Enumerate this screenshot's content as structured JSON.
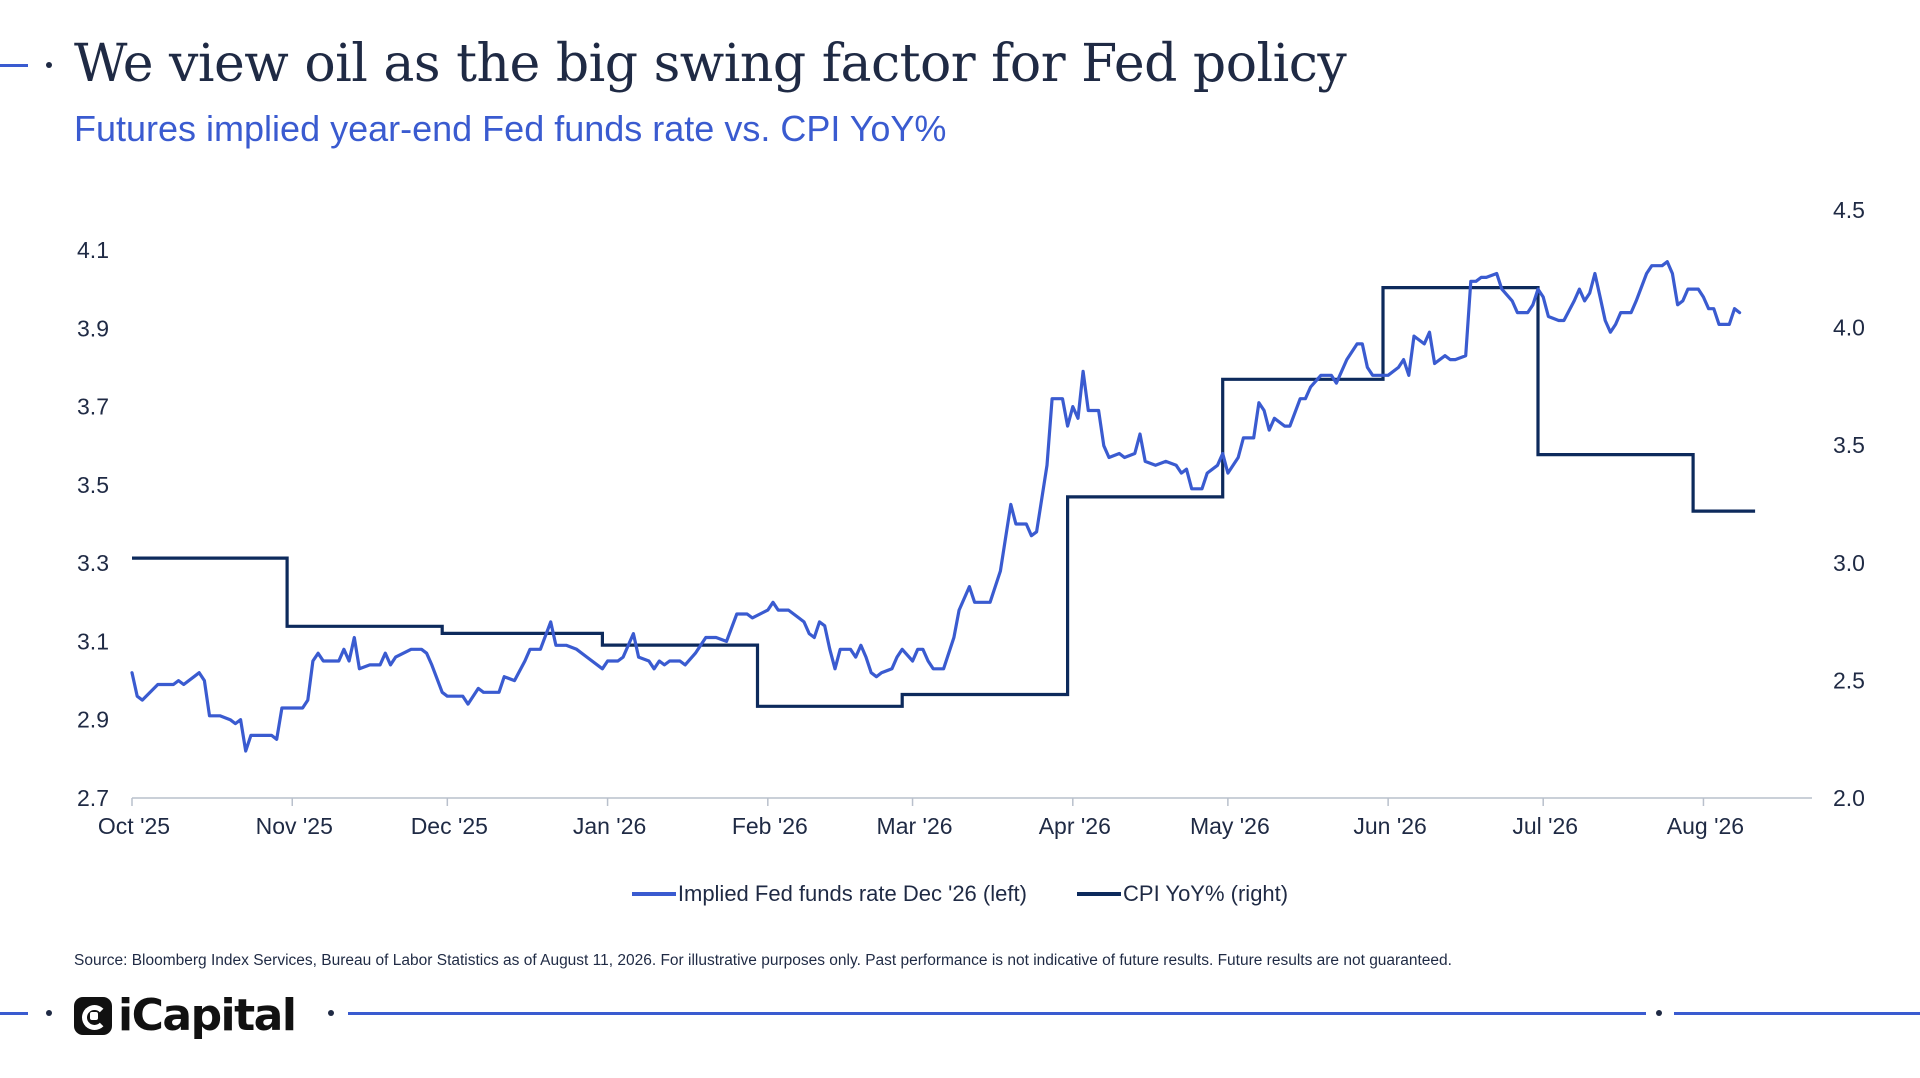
{
  "header": {
    "title": "We view oil as the big swing factor for Fed policy",
    "subtitle": "Futures implied year-end Fed funds rate vs. CPI YoY%"
  },
  "footer": {
    "source": "Source: Bloomberg Index Services, Bureau of Labor Statistics as of August 11, 2026. For illustrative purposes only. Past performance is not indicative of future results. Future results are not guaranteed.",
    "logo_text": "iCapital"
  },
  "colors": {
    "fed": "#3a5bd0",
    "cpi": "#0d2a5c",
    "accent": "#3a5bd0",
    "text": "#1f2a44"
  },
  "chart_data": {
    "type": "line",
    "x_axis": {
      "min": "2025-10-01",
      "max": "2026-08-11",
      "ticks": [
        {
          "date": "2025-10-01",
          "label": "Oct '25"
        },
        {
          "date": "2025-11-01",
          "label": "Nov '25"
        },
        {
          "date": "2025-12-01",
          "label": "Dec '25"
        },
        {
          "date": "2026-01-01",
          "label": "Jan '26"
        },
        {
          "date": "2026-02-01",
          "label": "Feb '26"
        },
        {
          "date": "2026-03-01",
          "label": "Mar '26"
        },
        {
          "date": "2026-04-01",
          "label": "Apr '26"
        },
        {
          "date": "2026-05-01",
          "label": "May '26"
        },
        {
          "date": "2026-06-01",
          "label": "Jun '26"
        },
        {
          "date": "2026-07-01",
          "label": "Jul '26"
        },
        {
          "date": "2026-08-01",
          "label": "Aug '26"
        }
      ]
    },
    "y_left": {
      "min": 2.7,
      "max": 4.1,
      "ticks": [
        "2.7",
        "2.9",
        "3.1",
        "3.3",
        "3.5",
        "3.7",
        "3.9",
        "4.1"
      ]
    },
    "y_right": {
      "min": 2.0,
      "max": 4.5,
      "ticks": [
        "2.0",
        "2.5",
        "3.0",
        "3.5",
        "4.0",
        "4.5"
      ]
    },
    "legend": {
      "position": "bottom"
    },
    "grid": false,
    "series": [
      {
        "name": "Implied Fed funds rate Dec '26 (left)",
        "axis": "left",
        "points": [
          [
            "2025-10-01",
            3.02
          ],
          [
            "2025-10-02",
            2.96
          ],
          [
            "2025-10-03",
            2.95
          ],
          [
            "2025-10-06",
            2.99
          ],
          [
            "2025-10-08",
            2.99
          ],
          [
            "2025-10-09",
            2.99
          ],
          [
            "2025-10-10",
            3.0
          ],
          [
            "2025-10-11",
            2.99
          ],
          [
            "2025-10-13",
            3.01
          ],
          [
            "2025-10-14",
            3.02
          ],
          [
            "2025-10-15",
            3.0
          ],
          [
            "2025-10-16",
            2.91
          ],
          [
            "2025-10-18",
            2.91
          ],
          [
            "2025-10-20",
            2.9
          ],
          [
            "2025-10-21",
            2.89
          ],
          [
            "2025-10-22",
            2.9
          ],
          [
            "2025-10-23",
            2.82
          ],
          [
            "2025-10-24",
            2.86
          ],
          [
            "2025-10-27",
            2.86
          ],
          [
            "2025-10-28",
            2.86
          ],
          [
            "2025-10-29",
            2.85
          ],
          [
            "2025-10-30",
            2.93
          ],
          [
            "2025-11-01",
            2.93
          ],
          [
            "2025-11-03",
            2.93
          ],
          [
            "2025-11-04",
            2.95
          ],
          [
            "2025-11-05",
            3.05
          ],
          [
            "2025-11-06",
            3.07
          ],
          [
            "2025-11-07",
            3.05
          ],
          [
            "2025-11-10",
            3.05
          ],
          [
            "2025-11-11",
            3.08
          ],
          [
            "2025-11-12",
            3.05
          ],
          [
            "2025-11-13",
            3.11
          ],
          [
            "2025-11-14",
            3.03
          ],
          [
            "2025-11-16",
            3.04
          ],
          [
            "2025-11-18",
            3.04
          ],
          [
            "2025-11-19",
            3.07
          ],
          [
            "2025-11-20",
            3.04
          ],
          [
            "2025-11-21",
            3.06
          ],
          [
            "2025-11-24",
            3.08
          ],
          [
            "2025-11-26",
            3.08
          ],
          [
            "2025-11-27",
            3.07
          ],
          [
            "2025-11-28",
            3.04
          ],
          [
            "2025-11-30",
            2.97
          ],
          [
            "2025-12-01",
            2.96
          ],
          [
            "2025-12-04",
            2.96
          ],
          [
            "2025-12-05",
            2.94
          ],
          [
            "2025-12-07",
            2.98
          ],
          [
            "2025-12-08",
            2.97
          ],
          [
            "2025-12-11",
            2.97
          ],
          [
            "2025-12-12",
            3.01
          ],
          [
            "2025-12-14",
            3.0
          ],
          [
            "2025-12-16",
            3.05
          ],
          [
            "2025-12-17",
            3.08
          ],
          [
            "2025-12-19",
            3.08
          ],
          [
            "2025-12-21",
            3.15
          ],
          [
            "2025-12-22",
            3.09
          ],
          [
            "2025-12-24",
            3.09
          ],
          [
            "2025-12-26",
            3.08
          ],
          [
            "2025-12-28",
            3.06
          ],
          [
            "2025-12-31",
            3.03
          ],
          [
            "2026-01-01",
            3.05
          ],
          [
            "2026-01-03",
            3.05
          ],
          [
            "2026-01-04",
            3.06
          ],
          [
            "2026-01-06",
            3.12
          ],
          [
            "2026-01-07",
            3.06
          ],
          [
            "2026-01-09",
            3.05
          ],
          [
            "2026-01-10",
            3.03
          ],
          [
            "2026-01-11",
            3.05
          ],
          [
            "2026-01-12",
            3.04
          ],
          [
            "2026-01-13",
            3.05
          ],
          [
            "2026-01-15",
            3.05
          ],
          [
            "2026-01-16",
            3.04
          ],
          [
            "2026-01-18",
            3.07
          ],
          [
            "2026-01-20",
            3.11
          ],
          [
            "2026-01-22",
            3.11
          ],
          [
            "2026-01-24",
            3.1
          ],
          [
            "2026-01-26",
            3.17
          ],
          [
            "2026-01-28",
            3.17
          ],
          [
            "2026-01-29",
            3.16
          ],
          [
            "2026-02-01",
            3.18
          ],
          [
            "2026-02-02",
            3.2
          ],
          [
            "2026-02-03",
            3.18
          ],
          [
            "2026-02-05",
            3.18
          ],
          [
            "2026-02-07",
            3.16
          ],
          [
            "2026-02-08",
            3.15
          ],
          [
            "2026-02-09",
            3.12
          ],
          [
            "2026-02-10",
            3.11
          ],
          [
            "2026-02-11",
            3.15
          ],
          [
            "2026-02-12",
            3.14
          ],
          [
            "2026-02-13",
            3.08
          ],
          [
            "2026-02-14",
            3.03
          ],
          [
            "2026-02-15",
            3.08
          ],
          [
            "2026-02-17",
            3.08
          ],
          [
            "2026-02-18",
            3.06
          ],
          [
            "2026-02-19",
            3.09
          ],
          [
            "2026-02-20",
            3.06
          ],
          [
            "2026-02-21",
            3.02
          ],
          [
            "2026-02-22",
            3.01
          ],
          [
            "2026-02-23",
            3.02
          ],
          [
            "2026-02-25",
            3.03
          ],
          [
            "2026-02-26",
            3.06
          ],
          [
            "2026-02-27",
            3.08
          ],
          [
            "2026-03-01",
            3.05
          ],
          [
            "2026-03-02",
            3.08
          ],
          [
            "2026-03-03",
            3.08
          ],
          [
            "2026-03-04",
            3.05
          ],
          [
            "2026-03-05",
            3.03
          ],
          [
            "2026-03-07",
            3.03
          ],
          [
            "2026-03-09",
            3.11
          ],
          [
            "2026-03-10",
            3.18
          ],
          [
            "2026-03-12",
            3.24
          ],
          [
            "2026-03-13",
            3.2
          ],
          [
            "2026-03-16",
            3.2
          ],
          [
            "2026-03-18",
            3.28
          ],
          [
            "2026-03-20",
            3.45
          ],
          [
            "2026-03-21",
            3.4
          ],
          [
            "2026-03-23",
            3.4
          ],
          [
            "2026-03-24",
            3.37
          ],
          [
            "2026-03-25",
            3.38
          ],
          [
            "2026-03-27",
            3.55
          ],
          [
            "2026-03-28",
            3.72
          ],
          [
            "2026-03-30",
            3.72
          ],
          [
            "2026-03-31",
            3.65
          ],
          [
            "2026-04-01",
            3.7
          ],
          [
            "2026-04-02",
            3.67
          ],
          [
            "2026-04-03",
            3.79
          ],
          [
            "2026-04-04",
            3.69
          ],
          [
            "2026-04-06",
            3.69
          ],
          [
            "2026-04-07",
            3.6
          ],
          [
            "2026-04-08",
            3.57
          ],
          [
            "2026-04-10",
            3.58
          ],
          [
            "2026-04-11",
            3.57
          ],
          [
            "2026-04-13",
            3.58
          ],
          [
            "2026-04-14",
            3.63
          ],
          [
            "2026-04-15",
            3.56
          ],
          [
            "2026-04-17",
            3.55
          ],
          [
            "2026-04-19",
            3.56
          ],
          [
            "2026-04-21",
            3.55
          ],
          [
            "2026-04-22",
            3.53
          ],
          [
            "2026-04-23",
            3.54
          ],
          [
            "2026-04-24",
            3.49
          ],
          [
            "2026-04-26",
            3.49
          ],
          [
            "2026-04-27",
            3.53
          ],
          [
            "2026-04-29",
            3.55
          ],
          [
            "2026-04-30",
            3.58
          ],
          [
            "2026-05-01",
            3.53
          ],
          [
            "2026-05-03",
            3.57
          ],
          [
            "2026-05-04",
            3.62
          ],
          [
            "2026-05-06",
            3.62
          ],
          [
            "2026-05-07",
            3.71
          ],
          [
            "2026-05-08",
            3.69
          ],
          [
            "2026-05-09",
            3.64
          ],
          [
            "2026-05-10",
            3.67
          ],
          [
            "2026-05-12",
            3.65
          ],
          [
            "2026-05-13",
            3.65
          ],
          [
            "2026-05-15",
            3.72
          ],
          [
            "2026-05-16",
            3.72
          ],
          [
            "2026-05-17",
            3.75
          ],
          [
            "2026-05-19",
            3.78
          ],
          [
            "2026-05-21",
            3.78
          ],
          [
            "2026-05-22",
            3.76
          ],
          [
            "2026-05-24",
            3.82
          ],
          [
            "2026-05-26",
            3.86
          ],
          [
            "2026-05-27",
            3.86
          ],
          [
            "2026-05-28",
            3.8
          ],
          [
            "2026-05-29",
            3.78
          ],
          [
            "2026-06-01",
            3.78
          ],
          [
            "2026-06-03",
            3.8
          ],
          [
            "2026-06-04",
            3.82
          ],
          [
            "2026-06-05",
            3.78
          ],
          [
            "2026-06-06",
            3.88
          ],
          [
            "2026-06-08",
            3.86
          ],
          [
            "2026-06-09",
            3.89
          ],
          [
            "2026-06-10",
            3.81
          ],
          [
            "2026-06-12",
            3.83
          ],
          [
            "2026-06-13",
            3.82
          ],
          [
            "2026-06-14",
            3.82
          ],
          [
            "2026-06-16",
            3.83
          ],
          [
            "2026-06-17",
            4.02
          ],
          [
            "2026-06-18",
            4.02
          ],
          [
            "2026-06-19",
            4.03
          ],
          [
            "2026-06-20",
            4.03
          ],
          [
            "2026-06-22",
            4.04
          ],
          [
            "2026-06-23",
            4.0
          ],
          [
            "2026-06-25",
            3.97
          ],
          [
            "2026-06-26",
            3.94
          ],
          [
            "2026-06-28",
            3.94
          ],
          [
            "2026-06-29",
            3.96
          ],
          [
            "2026-06-30",
            4.0
          ],
          [
            "2026-07-01",
            3.98
          ],
          [
            "2026-07-02",
            3.93
          ],
          [
            "2026-07-04",
            3.92
          ],
          [
            "2026-07-05",
            3.92
          ],
          [
            "2026-07-07",
            3.97
          ],
          [
            "2026-07-08",
            4.0
          ],
          [
            "2026-07-09",
            3.97
          ],
          [
            "2026-07-10",
            3.99
          ],
          [
            "2026-07-11",
            4.04
          ],
          [
            "2026-07-12",
            3.98
          ],
          [
            "2026-07-13",
            3.92
          ],
          [
            "2026-07-14",
            3.89
          ],
          [
            "2026-07-15",
            3.91
          ],
          [
            "2026-07-16",
            3.94
          ],
          [
            "2026-07-18",
            3.94
          ],
          [
            "2026-07-19",
            3.97
          ],
          [
            "2026-07-21",
            4.04
          ],
          [
            "2026-07-22",
            4.06
          ],
          [
            "2026-07-24",
            4.06
          ],
          [
            "2026-07-25",
            4.07
          ],
          [
            "2026-07-26",
            4.04
          ],
          [
            "2026-07-27",
            3.96
          ],
          [
            "2026-07-28",
            3.97
          ],
          [
            "2026-07-29",
            4.0
          ],
          [
            "2026-07-31",
            4.0
          ],
          [
            "2026-08-01",
            3.98
          ],
          [
            "2026-08-02",
            3.95
          ],
          [
            "2026-08-03",
            3.95
          ],
          [
            "2026-08-04",
            3.91
          ],
          [
            "2026-08-05",
            3.91
          ],
          [
            "2026-08-06",
            3.91
          ],
          [
            "2026-08-07",
            3.95
          ],
          [
            "2026-08-08",
            3.94
          ]
        ]
      },
      {
        "name": "CPI YoY% (right)",
        "axis": "right",
        "step": true,
        "points": [
          [
            "2025-10-01",
            3.02
          ],
          [
            "2025-10-31",
            2.73
          ],
          [
            "2025-11-30",
            2.7
          ],
          [
            "2025-12-31",
            2.65
          ],
          [
            "2026-01-30",
            2.39
          ],
          [
            "2026-02-27",
            2.44
          ],
          [
            "2026-03-31",
            3.28
          ],
          [
            "2026-04-30",
            3.78
          ],
          [
            "2026-05-31",
            4.17
          ],
          [
            "2026-06-30",
            3.46
          ],
          [
            "2026-07-30",
            3.22
          ],
          [
            "2026-08-11",
            3.22
          ]
        ]
      }
    ]
  }
}
